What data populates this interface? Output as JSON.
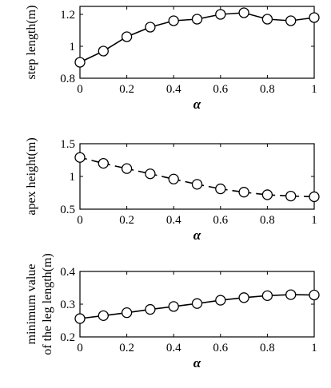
{
  "chart_data": [
    {
      "type": "line",
      "xlabel": "α",
      "ylabel": "step length(m)",
      "xlim": [
        0,
        1
      ],
      "ylim": [
        0.8,
        1.25
      ],
      "xticks": [
        "0",
        "0.2",
        "0.4",
        "0.6",
        "0.8",
        "1"
      ],
      "yticks": [
        "0.8",
        "1",
        "1.2"
      ],
      "ytick_values": [
        0.8,
        1.0,
        1.2
      ],
      "line_style": "solid",
      "marker": "circle",
      "x": [
        0,
        0.1,
        0.2,
        0.3,
        0.4,
        0.5,
        0.6,
        0.7,
        0.8,
        0.9,
        1.0
      ],
      "y": [
        0.9,
        0.97,
        1.06,
        1.12,
        1.16,
        1.17,
        1.2,
        1.21,
        1.17,
        1.16,
        1.18
      ]
    },
    {
      "type": "line",
      "xlabel": "α",
      "ylabel": "apex height(m)",
      "xlim": [
        0,
        1
      ],
      "ylim": [
        0.5,
        1.5
      ],
      "xticks": [
        "0",
        "0.2",
        "0.4",
        "0.6",
        "0.8",
        "1"
      ],
      "yticks": [
        "0.5",
        "1",
        "1.5"
      ],
      "ytick_values": [
        0.5,
        1.0,
        1.5
      ],
      "line_style": "dashed",
      "marker": "circle",
      "x": [
        0,
        0.1,
        0.2,
        0.3,
        0.4,
        0.5,
        0.6,
        0.7,
        0.8,
        0.9,
        1.0
      ],
      "y": [
        1.29,
        1.2,
        1.12,
        1.04,
        0.96,
        0.88,
        0.81,
        0.76,
        0.72,
        0.7,
        0.69
      ]
    },
    {
      "type": "line",
      "xlabel": "α",
      "ylabel": [
        "minimum value",
        "of the leg length(m)"
      ],
      "xlim": [
        0,
        1
      ],
      "ylim": [
        0.2,
        0.4
      ],
      "xticks": [
        "0",
        "0.2",
        "0.4",
        "0.6",
        "0.8",
        "1"
      ],
      "yticks": [
        "0.2",
        "0.3",
        "0.4"
      ],
      "ytick_values": [
        0.2,
        0.3,
        0.4
      ],
      "line_style": "solid",
      "marker": "circle",
      "x": [
        0,
        0.1,
        0.2,
        0.3,
        0.4,
        0.5,
        0.6,
        0.7,
        0.8,
        0.9,
        1.0
      ],
      "y": [
        0.256,
        0.265,
        0.274,
        0.284,
        0.293,
        0.302,
        0.312,
        0.32,
        0.326,
        0.329,
        0.328
      ]
    }
  ]
}
